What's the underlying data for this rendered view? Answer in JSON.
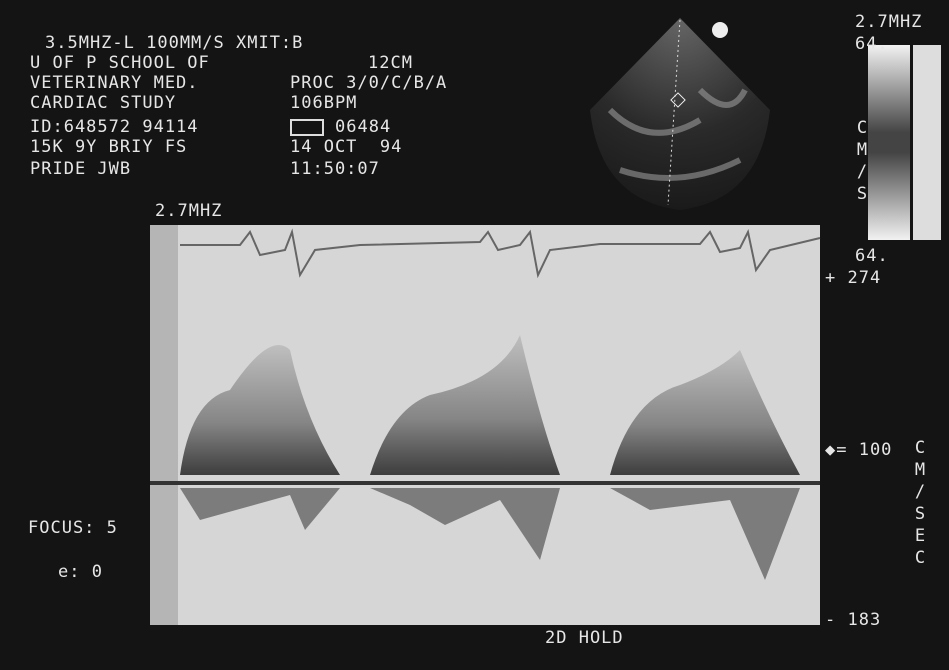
{
  "header": {
    "left": [
      "3.5MHZ-L 100MM/S XMIT:B",
      "U OF P SCHOOL OF",
      "VETERINARY MED.",
      "CARDIAC STUDY",
      "ID:648572 94114",
      "15K 9Y BRIY FS",
      "PRIDE JWB"
    ],
    "right": [
      "12CM",
      "PROC 3/0/C/B/A",
      "106BPM",
      "06484",
      "14 OCT  94",
      "11:50:07"
    ]
  },
  "color_bar": {
    "frequency": "2.7MHZ",
    "top": "64.",
    "unit": "CM/S",
    "bottom": "64."
  },
  "doppler": {
    "frequency": "2.7MHZ",
    "scale_top": "+ 274",
    "scale_mid": "◆= 100",
    "scale_unit": "CM/SEC",
    "scale_bottom": "- 183"
  },
  "settings": {
    "focus": "FOCUS: 5",
    "e": "e: 0"
  },
  "footer": {
    "status": "2D HOLD"
  }
}
